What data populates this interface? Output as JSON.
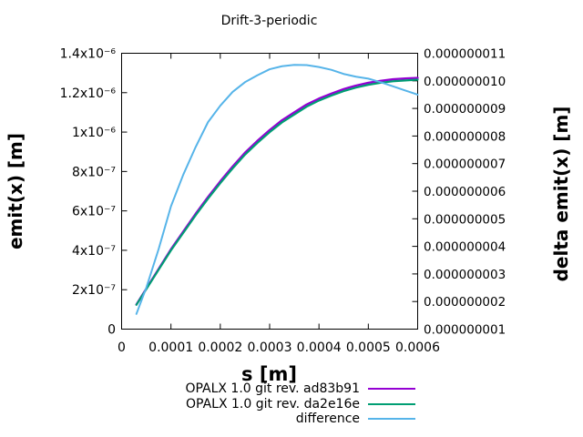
{
  "title": "Drift-3-periodic",
  "axes": {
    "x": {
      "label": "s [m]",
      "ticks": [
        {
          "v": 0,
          "label": "0"
        },
        {
          "v": 0.0001,
          "label": "0.0001"
        },
        {
          "v": 0.0002,
          "label": "0.0002"
        },
        {
          "v": 0.0003,
          "label": "0.0003"
        },
        {
          "v": 0.0004,
          "label": "0.0004"
        },
        {
          "v": 0.0005,
          "label": "0.0005"
        },
        {
          "v": 0.0006,
          "label": "0.0006"
        }
      ]
    },
    "y_left": {
      "label": "emit(x) [m]",
      "ticks": [
        {
          "v": 0,
          "label": "0"
        },
        {
          "v": 2e-07,
          "label": "2x10⁻⁷"
        },
        {
          "v": 4e-07,
          "label": "4x10⁻⁷"
        },
        {
          "v": 6e-07,
          "label": "6x10⁻⁷"
        },
        {
          "v": 8e-07,
          "label": "8x10⁻⁷"
        },
        {
          "v": 1e-06,
          "label": "1x10⁻⁶"
        },
        {
          "v": 1.2e-06,
          "label": "1.2x10⁻⁶"
        },
        {
          "v": 1.4e-06,
          "label": "1.4x10⁻⁶"
        }
      ]
    },
    "y_right": {
      "label": "delta emit(x) [m]",
      "ticks": [
        {
          "v": 1e-09,
          "label": "0.000000001"
        },
        {
          "v": 2e-09,
          "label": "0.000000002"
        },
        {
          "v": 3e-09,
          "label": "0.000000003"
        },
        {
          "v": 4e-09,
          "label": "0.000000004"
        },
        {
          "v": 5e-09,
          "label": "0.000000005"
        },
        {
          "v": 6e-09,
          "label": "0.000000006"
        },
        {
          "v": 7e-09,
          "label": "0.000000007"
        },
        {
          "v": 8e-09,
          "label": "0.000000008"
        },
        {
          "v": 9e-09,
          "label": "0.000000009"
        },
        {
          "v": 1e-08,
          "label": "0.000000010"
        },
        {
          "v": 1.1e-08,
          "label": "0.000000011"
        }
      ]
    }
  },
  "legend": [
    {
      "label": "OPALX 1.0 git rev. ad83b91",
      "color": "#9400d3"
    },
    {
      "label": "OPALX 1.0 git rev. da2e16e",
      "color": "#009e73"
    },
    {
      "label": "difference",
      "color": "#56b4e9"
    }
  ],
  "chart_data": {
    "type": "line",
    "title": "Drift-3-periodic",
    "xlabel": "s [m]",
    "ylabel_left": "emit(x) [m]",
    "ylabel_right": "delta emit(x) [m]",
    "xlim": [
      0,
      0.0006
    ],
    "ylim_left": [
      0,
      1.4e-06
    ],
    "ylim_right": [
      1e-09,
      1.1e-08
    ],
    "grid": false,
    "legend_position": "below",
    "x": [
      3e-05,
      5e-05,
      7.5e-05,
      0.0001,
      0.000125,
      0.00015,
      0.000175,
      0.0002,
      0.000225,
      0.00025,
      0.000275,
      0.0003,
      0.000325,
      0.00035,
      0.000375,
      0.0004,
      0.000425,
      0.00045,
      0.000475,
      0.0005,
      0.000525,
      0.00055,
      0.000575,
      0.0006
    ],
    "series": [
      {
        "name": "OPALX 1.0 git rev. ad83b91",
        "axis": "left",
        "color": "#9400d3",
        "width": 2.4,
        "values": [
          1.25e-07,
          2.05e-07,
          3.05e-07,
          4.05e-07,
          4.95e-07,
          5.85e-07,
          6.7e-07,
          7.5e-07,
          8.25e-07,
          8.95e-07,
          9.55e-07,
          1.01e-06,
          1.06e-06,
          1.1e-06,
          1.14e-06,
          1.17e-06,
          1.195e-06,
          1.218e-06,
          1.236e-06,
          1.25e-06,
          1.26e-06,
          1.268e-06,
          1.272e-06,
          1.275e-06
        ]
      },
      {
        "name": "OPALX 1.0 git rev. da2e16e",
        "axis": "left",
        "color": "#009e73",
        "width": 2.2,
        "values": [
          1.234e-07,
          2.025e-07,
          3.011e-07,
          3.996e-07,
          4.884e-07,
          5.774e-07,
          6.615e-07,
          7.409e-07,
          8.154e-07,
          8.851e-07,
          9.448e-07,
          9.996e-07,
          1.049e-06,
          1.089e-06,
          1.129e-06,
          1.16e-06,
          1.185e-06,
          1.208e-06,
          1.226e-06,
          1.24e-06,
          1.25e-06,
          1.258e-06,
          1.262e-06,
          1.266e-06
        ]
      },
      {
        "name": "difference",
        "axis": "right",
        "color": "#56b4e9",
        "width": 2,
        "values": [
          1.55e-09,
          2.5e-09,
          3.9e-09,
          5.45e-09,
          6.6e-09,
          7.6e-09,
          8.5e-09,
          9.1e-09,
          9.6e-09,
          9.95e-09,
          1.02e-08,
          1.042e-08,
          1.053e-08,
          1.058e-08,
          1.057e-08,
          1.05e-08,
          1.04e-08,
          1.025e-08,
          1.015e-08,
          1.008e-08,
          9.95e-09,
          9.8e-09,
          9.65e-09,
          9.5e-09
        ]
      }
    ]
  }
}
